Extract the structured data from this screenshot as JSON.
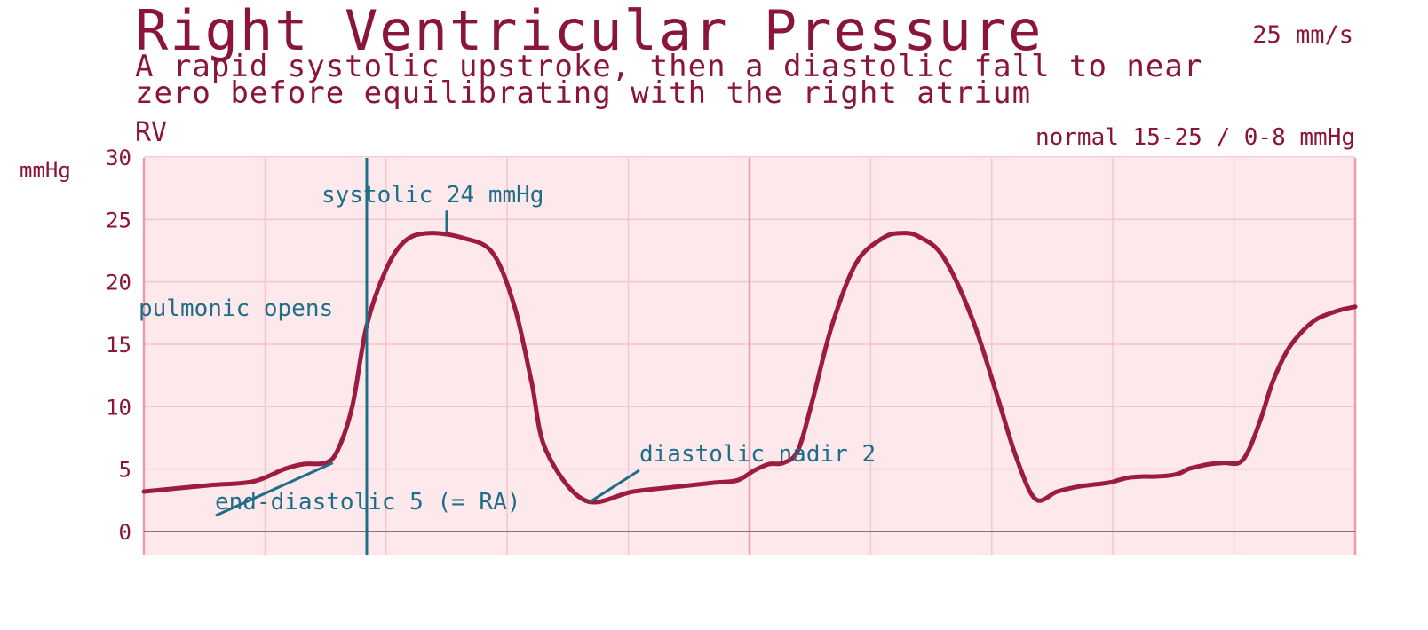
{
  "header": {
    "title": "Right Ventricular Pressure",
    "speed": "25 mm/s",
    "subtitle_line1": "A rapid systolic upstroke, then a diastolic fall to near",
    "subtitle_line2": "zero before equilibrating with the right atrium",
    "lead": "RV",
    "normal_range": "normal 15-25 / 0-8 mmHg"
  },
  "colors": {
    "waveform": "#9b1b41",
    "annotation": "#1f6e88",
    "grid_minor": "#f4c6cf",
    "grid_major": "#ee9aae",
    "plot_bg": "#fde8eb",
    "baseline": "#8a6f78",
    "text": "#8b1538"
  },
  "chart_data": {
    "type": "line",
    "title": "Right Ventricular Pressure",
    "ylabel": "mmHg",
    "ylim": [
      -2,
      30
    ],
    "yticks": [
      0,
      5,
      10,
      15,
      20,
      25,
      30
    ],
    "grid": true,
    "series": [
      {
        "name": "RV",
        "x": [
          0.0,
          0.27,
          0.45,
          0.58,
          0.66,
          0.75,
          0.8,
          0.86,
          0.92,
          1.0,
          1.08,
          1.18,
          1.32,
          1.44,
          1.53,
          1.6,
          1.66,
          1.82,
          2.02,
          2.21,
          2.35,
          2.45,
          2.52,
          2.58,
          2.64,
          2.7,
          2.76,
          2.84,
          2.94,
          3.05,
          3.13,
          3.2,
          3.3,
          3.42,
          3.52,
          3.6,
          3.68,
          3.77,
          3.86,
          3.98,
          4.02,
          4.06,
          4.12,
          4.17,
          4.24,
          4.28,
          4.31,
          4.35,
          4.4,
          4.46,
          4.52,
          4.56,
          4.61,
          4.66,
          4.72,
          4.78,
          4.84,
          4.9,
          4.95,
          5.0
        ],
        "y": [
          3.2,
          3.7,
          4.0,
          5.0,
          5.4,
          5.5,
          6.5,
          10.0,
          16.5,
          21.0,
          23.3,
          23.9,
          23.5,
          22.3,
          18.0,
          12.0,
          6.5,
          2.5,
          3.2,
          3.6,
          3.9,
          4.1,
          4.9,
          5.4,
          5.5,
          6.5,
          10.5,
          16.5,
          21.5,
          23.5,
          23.9,
          23.6,
          22.0,
          17.0,
          11.0,
          6.0,
          2.6,
          3.2,
          3.6,
          3.9,
          4.1,
          4.3,
          4.4,
          4.4,
          4.5,
          4.7,
          5.0,
          5.2,
          5.4,
          5.5,
          5.5,
          6.5,
          9.0,
          12.0,
          14.5,
          16.0,
          17.0,
          17.5,
          17.8,
          18.0
        ]
      }
    ],
    "annotations": [
      {
        "label": "systolic 24 mmHg",
        "x": 1.25,
        "y": 24
      },
      {
        "label": "pulmonic opens",
        "x": 0.92,
        "y": 12.5
      },
      {
        "label": "end-diastolic 5 (= RA)",
        "x": 0.78,
        "y": 5.5
      },
      {
        "label": "diastolic nadir 2",
        "x": 1.84,
        "y": 2.5
      }
    ]
  }
}
